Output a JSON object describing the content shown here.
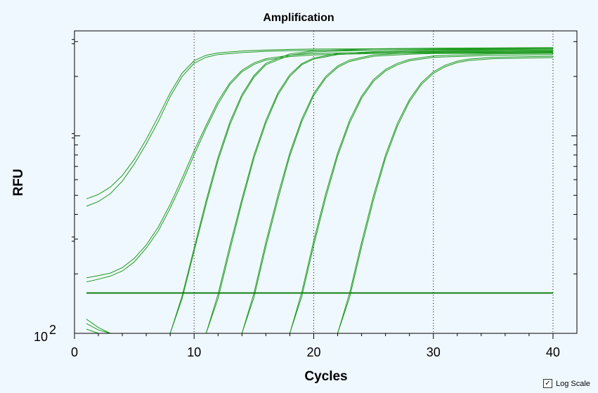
{
  "chart_data": {
    "type": "line",
    "title": "Amplification",
    "xlabel": "Cycles",
    "ylabel": "RFU",
    "xlim": [
      0,
      42
    ],
    "log_y": true,
    "ylim": [
      100,
      3400
    ],
    "x_ticks": [
      0,
      10,
      20,
      30,
      40
    ],
    "x_tick_labels": [
      "0",
      "10",
      "20",
      "30",
      "40"
    ],
    "y_tick_labels": [
      "10",
      "2"
    ],
    "vertical_gridlines": [
      10,
      20,
      30,
      40
    ],
    "threshold": 160,
    "line_color": "#1c9a1c",
    "threshold_color": "#138013",
    "series": [
      {
        "x": [
          1,
          2,
          3,
          4,
          5,
          6,
          7,
          8,
          9,
          10,
          11,
          12,
          14,
          16,
          18,
          20,
          25,
          30,
          35,
          40
        ],
        "values": [
          480,
          505,
          550,
          630,
          760,
          960,
          1250,
          1650,
          2080,
          2400,
          2560,
          2630,
          2690,
          2720,
          2740,
          2750,
          2760,
          2765,
          2768,
          2770
        ]
      },
      {
        "x": [
          1,
          2,
          3,
          4,
          5,
          6,
          7,
          8,
          9,
          10,
          11,
          12,
          14,
          16,
          18,
          20,
          25,
          30,
          35,
          40
        ],
        "values": [
          440,
          465,
          510,
          590,
          720,
          910,
          1180,
          1580,
          2000,
          2330,
          2500,
          2580,
          2640,
          2680,
          2700,
          2710,
          2720,
          2725,
          2728,
          2730
        ]
      },
      {
        "x": [
          1,
          2,
          3,
          4,
          5,
          6,
          7,
          8,
          9,
          10,
          11,
          12,
          13,
          14,
          15,
          16,
          18,
          20,
          25,
          30,
          35,
          40
        ],
        "values": [
          191,
          196,
          202,
          215,
          240,
          280,
          345,
          450,
          610,
          840,
          1130,
          1500,
          1860,
          2150,
          2340,
          2460,
          2560,
          2610,
          2650,
          2670,
          2680,
          2690
        ]
      },
      {
        "x": [
          1,
          2,
          3,
          4,
          5,
          6,
          7,
          8,
          9,
          10,
          11,
          12,
          13,
          14,
          15,
          16,
          18,
          20,
          25,
          30,
          35,
          40
        ],
        "values": [
          182,
          188,
          195,
          207,
          230,
          270,
          330,
          430,
          580,
          800,
          1090,
          1450,
          1820,
          2110,
          2300,
          2420,
          2520,
          2570,
          2610,
          2630,
          2640,
          2650
        ]
      },
      {
        "x": [
          8,
          9,
          10,
          11,
          12,
          13,
          14,
          15,
          16,
          18,
          20,
          25,
          30,
          35,
          40
        ],
        "values": [
          100,
          155,
          270,
          470,
          780,
          1180,
          1620,
          2020,
          2330,
          2600,
          2700,
          2760,
          2780,
          2790,
          2800
        ]
      },
      {
        "x": [
          8,
          9,
          10,
          11,
          12,
          13,
          14,
          15,
          16,
          18,
          20,
          25,
          30,
          35,
          40
        ],
        "values": [
          100,
          150,
          260,
          450,
          750,
          1140,
          1580,
          1980,
          2290,
          2560,
          2660,
          2720,
          2740,
          2750,
          2760
        ]
      },
      {
        "x": [
          11,
          12,
          13,
          14,
          15,
          16,
          17,
          18,
          19,
          20,
          22,
          25,
          30,
          35,
          40
        ],
        "values": [
          100,
          158,
          280,
          480,
          800,
          1200,
          1650,
          2040,
          2320,
          2480,
          2610,
          2670,
          2700,
          2710,
          2720
        ]
      },
      {
        "x": [
          11,
          12,
          13,
          14,
          15,
          16,
          17,
          18,
          19,
          20,
          22,
          25,
          30,
          35,
          40
        ],
        "values": [
          100,
          150,
          265,
          460,
          770,
          1160,
          1610,
          2000,
          2290,
          2450,
          2580,
          2640,
          2670,
          2680,
          2690
        ]
      },
      {
        "x": [
          14,
          15,
          16,
          17,
          18,
          19,
          20,
          21,
          22,
          23,
          25,
          28,
          30,
          35,
          40
        ],
        "values": [
          100,
          160,
          290,
          500,
          820,
          1220,
          1640,
          2000,
          2260,
          2420,
          2570,
          2630,
          2650,
          2660,
          2670
        ]
      },
      {
        "x": [
          14,
          15,
          16,
          17,
          18,
          19,
          20,
          21,
          22,
          23,
          25,
          28,
          30,
          35,
          40
        ],
        "values": [
          100,
          152,
          275,
          475,
          790,
          1180,
          1600,
          1960,
          2220,
          2380,
          2530,
          2590,
          2610,
          2620,
          2630
        ]
      },
      {
        "x": [
          18,
          19,
          20,
          21,
          22,
          23,
          24,
          25,
          26,
          27,
          28,
          30,
          35,
          40
        ],
        "values": [
          100,
          162,
          295,
          510,
          820,
          1200,
          1590,
          1930,
          2170,
          2330,
          2440,
          2540,
          2600,
          2620
        ]
      },
      {
        "x": [
          18,
          19,
          20,
          21,
          22,
          23,
          24,
          25,
          26,
          27,
          28,
          30,
          35,
          40
        ],
        "values": [
          100,
          154,
          280,
          485,
          790,
          1160,
          1550,
          1890,
          2130,
          2290,
          2400,
          2500,
          2560,
          2580
        ]
      },
      {
        "x": [
          22,
          23,
          24,
          25,
          26,
          27,
          28,
          29,
          30,
          31,
          32,
          33,
          35,
          38,
          40
        ],
        "values": [
          100,
          160,
          290,
          500,
          800,
          1160,
          1530,
          1860,
          2110,
          2280,
          2390,
          2450,
          2500,
          2520,
          2530
        ]
      },
      {
        "x": [
          22,
          23,
          24,
          25,
          26,
          27,
          28,
          29,
          30,
          31,
          32,
          33,
          35,
          38,
          40
        ],
        "values": [
          100,
          152,
          275,
          475,
          770,
          1120,
          1490,
          1820,
          2070,
          2240,
          2350,
          2410,
          2460,
          2480,
          2490
        ]
      },
      {
        "x": [
          1,
          2,
          3
        ],
        "values": [
          118,
          107,
          100
        ]
      },
      {
        "x": [
          1,
          2,
          3
        ],
        "values": [
          112,
          104,
          100
        ]
      },
      {
        "x": [
          1,
          2
        ],
        "values": [
          105,
          100
        ]
      }
    ]
  },
  "log_scale": {
    "label": "Log Scale",
    "checked": true
  }
}
